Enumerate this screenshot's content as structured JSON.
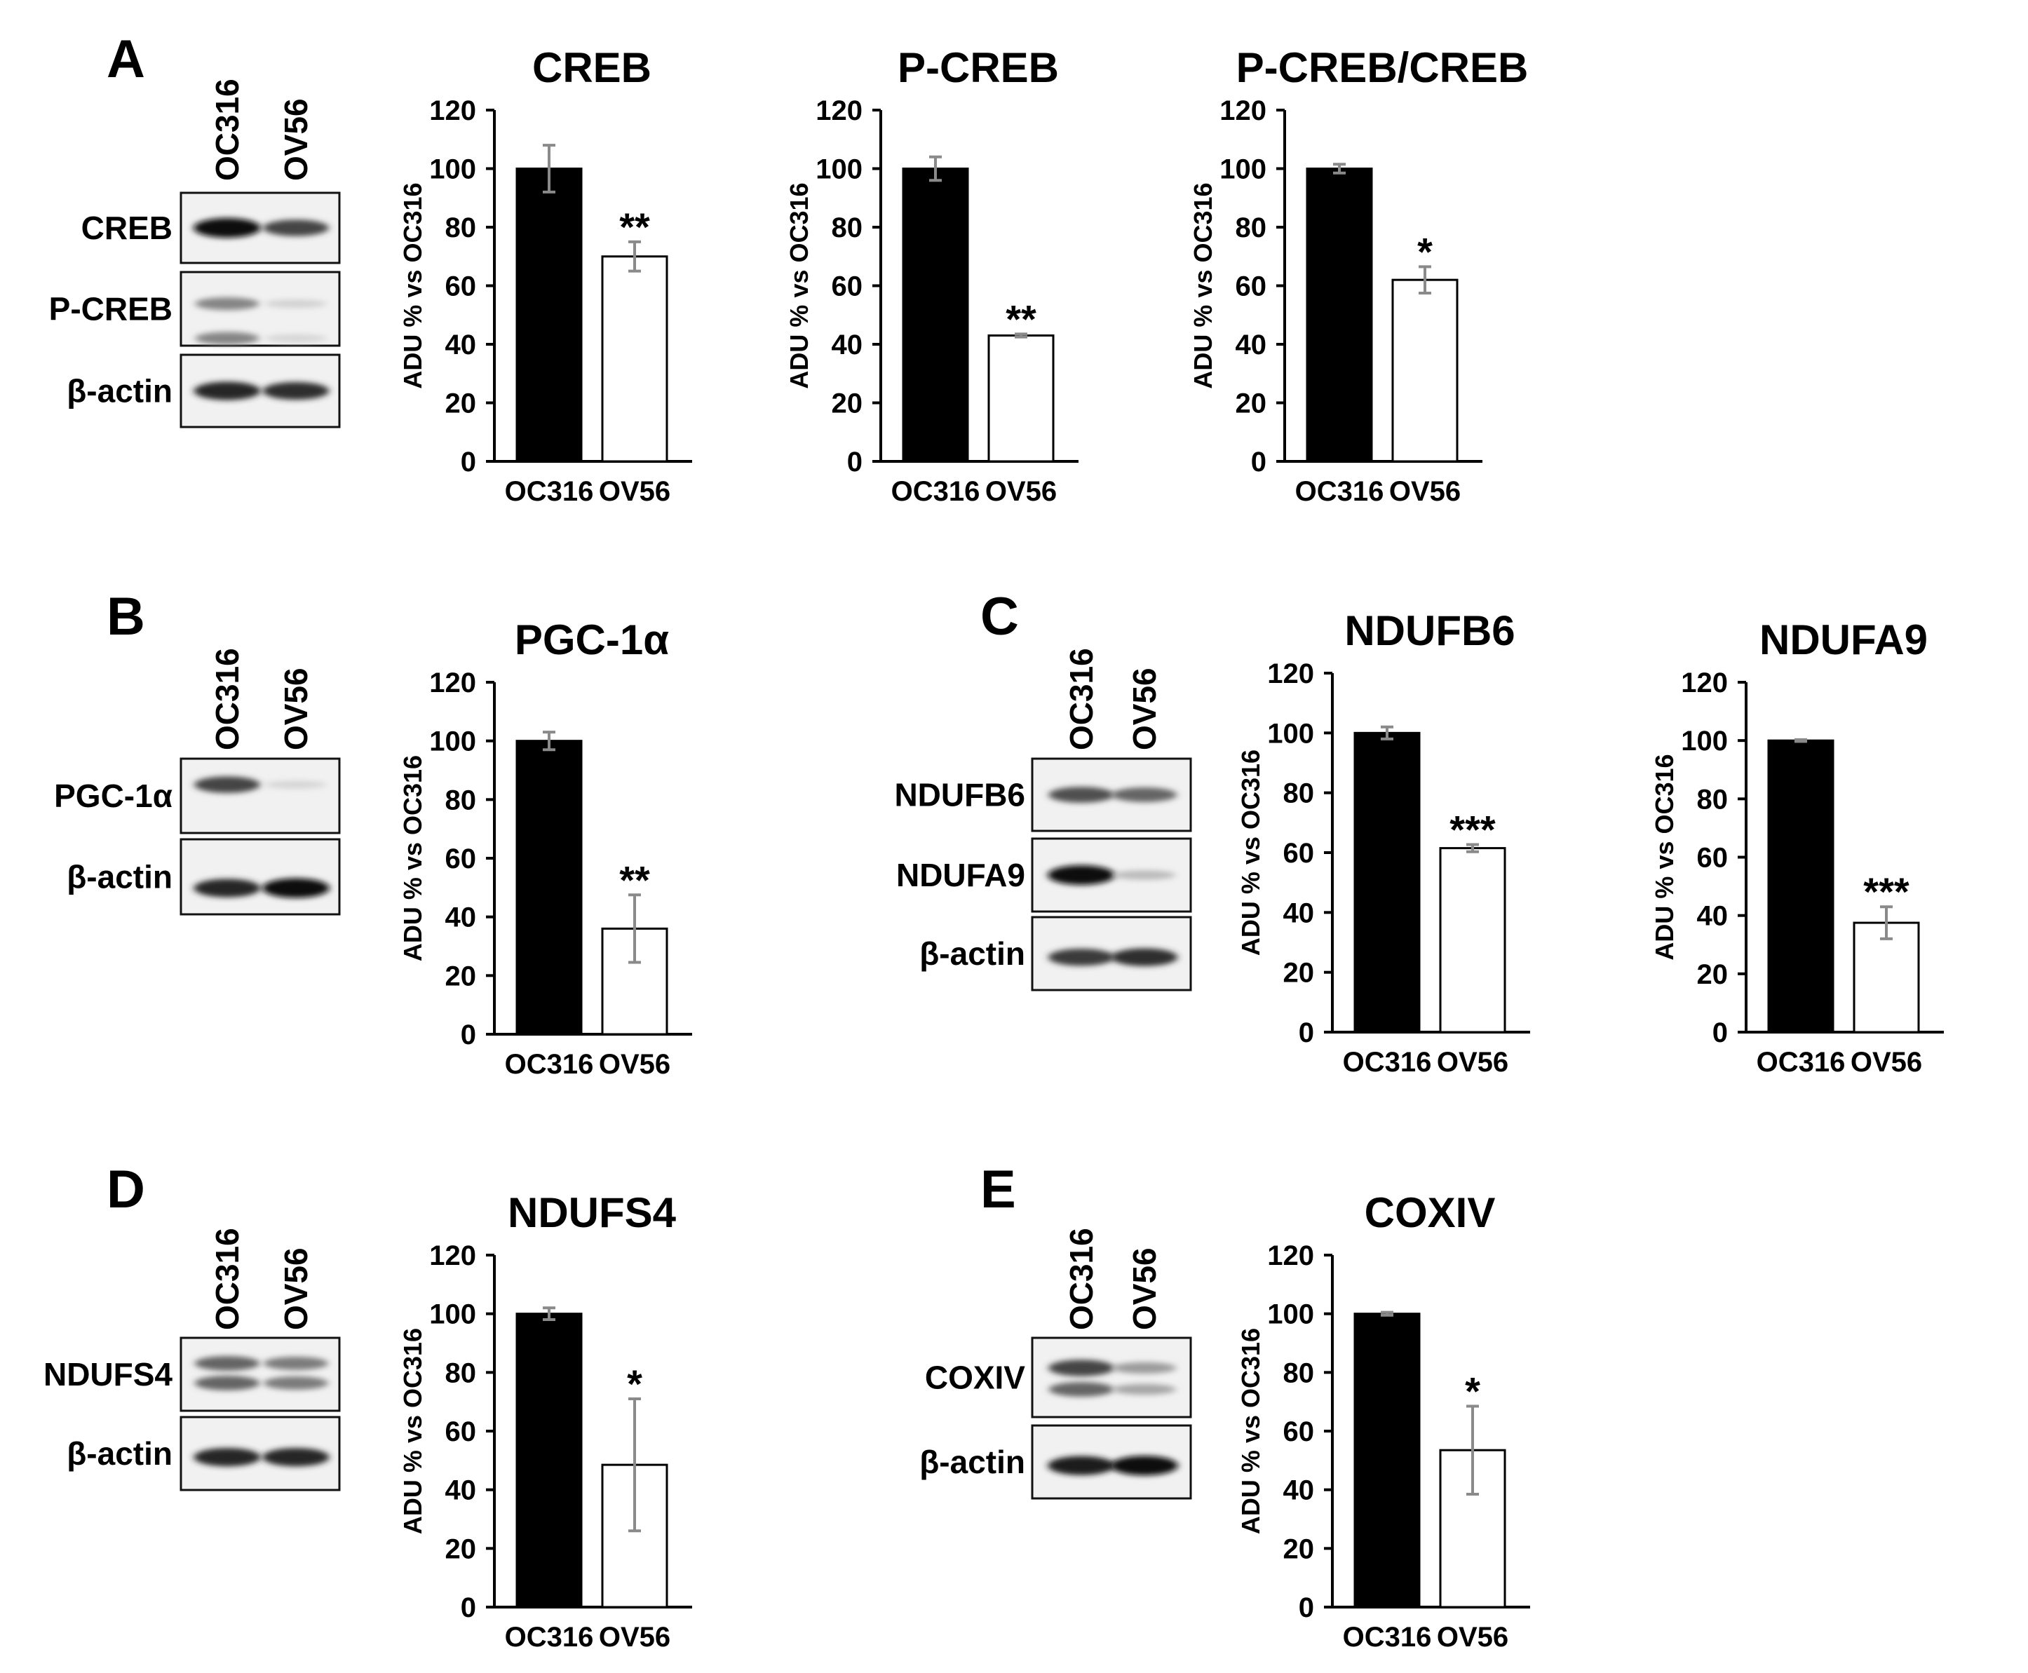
{
  "panels": [
    {
      "letter": "A"
    },
    {
      "letter": "B"
    },
    {
      "letter": "C"
    },
    {
      "letter": "D"
    },
    {
      "letter": "E"
    }
  ],
  "blots": [
    {
      "id": "A",
      "lanes": [
        "OC316",
        "OV56"
      ],
      "rows": [
        {
          "label": "CREB",
          "bands": [
            {
              "y": 0.5,
              "i": [
                1.0,
                0.75
              ]
            }
          ]
        },
        {
          "label": "P-CREB",
          "bands": [
            {
              "y": 0.43,
              "i": [
                0.45,
                0.1
              ]
            },
            {
              "y": 0.9,
              "i": [
                0.45,
                0.08
              ]
            }
          ]
        },
        {
          "label": "β-actin",
          "bands": [
            {
              "y": 0.5,
              "i": [
                0.9,
                0.85
              ]
            }
          ]
        }
      ]
    },
    {
      "id": "B",
      "lanes": [
        "OC316",
        "OV56"
      ],
      "rows": [
        {
          "label": "PGC-1α",
          "bands": [
            {
              "y": 0.35,
              "i": [
                0.75,
                0.08
              ]
            }
          ]
        },
        {
          "label": "β-actin",
          "bands": [
            {
              "y": 0.65,
              "i": [
                0.9,
                1.0
              ]
            }
          ]
        }
      ]
    },
    {
      "id": "C",
      "lanes": [
        "OC316",
        "OV56"
      ],
      "rows": [
        {
          "label": "NDUFB6",
          "bands": [
            {
              "y": 0.5,
              "i": [
                0.7,
                0.6
              ]
            }
          ]
        },
        {
          "label": "NDUFA9",
          "bands": [
            {
              "y": 0.5,
              "i": [
                1.0,
                0.2
              ]
            }
          ]
        },
        {
          "label": "β-actin",
          "bands": [
            {
              "y": 0.55,
              "i": [
                0.8,
                0.85
              ]
            }
          ]
        }
      ]
    },
    {
      "id": "D",
      "lanes": [
        "OC316",
        "OV56"
      ],
      "rows": [
        {
          "label": "NDUFS4",
          "bands": [
            {
              "y": 0.35,
              "i": [
                0.6,
                0.5
              ]
            },
            {
              "y": 0.62,
              "i": [
                0.6,
                0.5
              ]
            }
          ]
        },
        {
          "label": "β-actin",
          "bands": [
            {
              "y": 0.55,
              "i": [
                0.9,
                0.9
              ]
            }
          ]
        }
      ]
    },
    {
      "id": "E",
      "lanes": [
        "OC316",
        "OV56"
      ],
      "rows": [
        {
          "label": "COXIV",
          "bands": [
            {
              "y": 0.38,
              "i": [
                0.75,
                0.35
              ]
            },
            {
              "y": 0.65,
              "i": [
                0.6,
                0.3
              ]
            }
          ]
        },
        {
          "label": "β-actin",
          "bands": [
            {
              "y": 0.55,
              "i": [
                0.95,
                1.0
              ]
            }
          ]
        }
      ]
    }
  ],
  "chart_data": [
    {
      "type": "bar",
      "title": "CREB",
      "ylabel": "ADU % vs OC316",
      "categories": [
        "OC316",
        "OV56"
      ],
      "values": [
        100,
        70
      ],
      "errors": [
        8,
        5
      ],
      "significance": [
        "",
        "**"
      ],
      "ylim": [
        0,
        120
      ],
      "yticks": [
        0,
        20,
        40,
        60,
        80,
        100,
        120
      ],
      "bar_colors": [
        "#000000",
        "#ffffff"
      ]
    },
    {
      "type": "bar",
      "title": "P-CREB",
      "ylabel": "ADU % vs OC316",
      "categories": [
        "OC316",
        "OV56"
      ],
      "values": [
        100,
        43
      ],
      "errors": [
        4,
        0.5
      ],
      "significance": [
        "",
        "**"
      ],
      "ylim": [
        0,
        120
      ],
      "yticks": [
        0,
        20,
        40,
        60,
        80,
        100,
        120
      ],
      "bar_colors": [
        "#000000",
        "#ffffff"
      ]
    },
    {
      "type": "bar",
      "title": "P-CREB/CREB",
      "ylabel": "ADU % vs OC316",
      "categories": [
        "OC316",
        "OV56"
      ],
      "values": [
        100,
        62
      ],
      "errors": [
        1.5,
        4.5
      ],
      "significance": [
        "",
        "*"
      ],
      "ylim": [
        0,
        120
      ],
      "yticks": [
        0,
        20,
        40,
        60,
        80,
        100,
        120
      ],
      "bar_colors": [
        "#000000",
        "#ffffff"
      ]
    },
    {
      "type": "bar",
      "title": "PGC-1α",
      "ylabel": "ADU % vs OC316",
      "categories": [
        "OC316",
        "OV56"
      ],
      "values": [
        100,
        36
      ],
      "errors": [
        3,
        11.5
      ],
      "significance": [
        "",
        "**"
      ],
      "ylim": [
        0,
        120
      ],
      "yticks": [
        0,
        20,
        40,
        60,
        80,
        100,
        120
      ],
      "bar_colors": [
        "#000000",
        "#ffffff"
      ]
    },
    {
      "type": "bar",
      "title": "NDUFB6",
      "ylabel": "ADU % vs OC316",
      "categories": [
        "OC316",
        "OV56"
      ],
      "values": [
        100,
        61.5
      ],
      "errors": [
        2,
        1.2
      ],
      "significance": [
        "",
        "***"
      ],
      "ylim": [
        0,
        120
      ],
      "yticks": [
        0,
        20,
        40,
        60,
        80,
        100,
        120
      ],
      "bar_colors": [
        "#000000",
        "#ffffff"
      ]
    },
    {
      "type": "bar",
      "title": "NDUFA9",
      "ylabel": "ADU % vs OC316",
      "categories": [
        "OC316",
        "OV56"
      ],
      "values": [
        100,
        37.5
      ],
      "errors": [
        0.3,
        5.5
      ],
      "significance": [
        "",
        "***"
      ],
      "ylim": [
        0,
        120
      ],
      "yticks": [
        0,
        20,
        40,
        60,
        80,
        100,
        120
      ],
      "bar_colors": [
        "#000000",
        "#ffffff"
      ]
    },
    {
      "type": "bar",
      "title": "NDUFS4",
      "ylabel": "ADU % vs OC316",
      "categories": [
        "OC316",
        "OV56"
      ],
      "values": [
        100,
        48.5
      ],
      "errors": [
        2,
        22.5
      ],
      "significance": [
        "",
        "*"
      ],
      "ylim": [
        0,
        120
      ],
      "yticks": [
        0,
        20,
        40,
        60,
        80,
        100,
        120
      ],
      "bar_colors": [
        "#000000",
        "#ffffff"
      ]
    },
    {
      "type": "bar",
      "title": "COXIV",
      "ylabel": "ADU % vs OC316",
      "categories": [
        "OC316",
        "OV56"
      ],
      "values": [
        100,
        53.5
      ],
      "errors": [
        0.5,
        15
      ],
      "significance": [
        "",
        "*"
      ],
      "ylim": [
        0,
        120
      ],
      "yticks": [
        0,
        20,
        40,
        60,
        80,
        100,
        120
      ],
      "bar_colors": [
        "#000000",
        "#ffffff"
      ]
    }
  ]
}
